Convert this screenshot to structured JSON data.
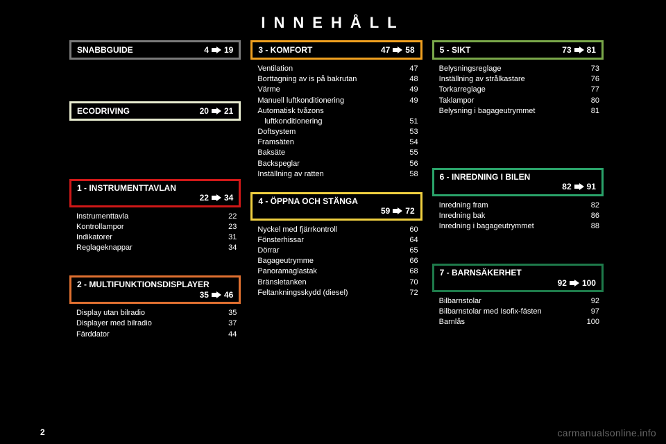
{
  "title": "INNEHÅLL",
  "page_number": "2",
  "watermark": "carmanualsonline.info",
  "colors": {
    "snabbguide": "#7a7a7a",
    "ecodriving": "#e8ecd0",
    "instrument": "#d01818",
    "multifunk": "#e07030",
    "komfort": "#f0a020",
    "oppna": "#f0d040",
    "sikt": "#7aa84a",
    "inredning": "#2aa36a",
    "barn": "#1e7a4a",
    "arrow": "#ffffff"
  },
  "sections": {
    "snabbguide": {
      "label": "SNABBGUIDE",
      "range_from": "4",
      "range_to": "19",
      "items": []
    },
    "ecodriving": {
      "label": "ECODRIVING",
      "range_from": "20",
      "range_to": "21",
      "items": []
    },
    "instrument": {
      "label": "1 - INSTRUMENTTAVLAN",
      "range_from": "22",
      "range_to": "34",
      "two_line": true,
      "items": [
        {
          "name": "Instrumenttavla",
          "page": "22"
        },
        {
          "name": "Kontrollampor",
          "page": "23"
        },
        {
          "name": "Indikatorer",
          "page": "31"
        },
        {
          "name": "Reglageknappar",
          "page": "34"
        }
      ]
    },
    "multifunk": {
      "label": "2 - MULTIFUNKTIONSDISPLAYER",
      "range_from": "35",
      "range_to": "46",
      "two_line": true,
      "items": [
        {
          "name": "Display utan bilradio",
          "page": "35"
        },
        {
          "name": "Displayer med bilradio",
          "page": "37"
        },
        {
          "name": "Färddator",
          "page": "44"
        }
      ]
    },
    "komfort": {
      "label": "3 - KOMFORT",
      "range_from": "47",
      "range_to": "58",
      "items": [
        {
          "name": "Ventilation",
          "page": "47"
        },
        {
          "name": "Borttagning av is på bakrutan",
          "page": "48"
        },
        {
          "name": "Värme",
          "page": "49"
        },
        {
          "name": "Manuell luftkonditionering",
          "page": "49"
        },
        {
          "name": "Automatisk tvåzons",
          "page": ""
        },
        {
          "name": "luftkonditionering",
          "page": "51",
          "sub": true
        },
        {
          "name": "Doftsystem",
          "page": "53"
        },
        {
          "name": "Framsäten",
          "page": "54"
        },
        {
          "name": "Baksäte",
          "page": "55"
        },
        {
          "name": "Backspeglar",
          "page": "56"
        },
        {
          "name": "Inställning av ratten",
          "page": "58"
        }
      ]
    },
    "oppna": {
      "label": "4 - ÖPPNA OCH STÄNGA",
      "range_from": "59",
      "range_to": "72",
      "two_line": true,
      "items": [
        {
          "name": "Nyckel med fjärrkontroll",
          "page": "60"
        },
        {
          "name": "Fönsterhissar",
          "page": "64"
        },
        {
          "name": "Dörrar",
          "page": "65"
        },
        {
          "name": "Bagageutrymme",
          "page": "66"
        },
        {
          "name": "Panoramaglastak",
          "page": "68"
        },
        {
          "name": "Bränsletanken",
          "page": "70"
        },
        {
          "name": "Feltankningsskydd (diesel)",
          "page": "72"
        }
      ]
    },
    "sikt": {
      "label": "5 - SIKT",
      "range_from": "73",
      "range_to": "81",
      "items": [
        {
          "name": "Belysningsreglage",
          "page": "73"
        },
        {
          "name": "Inställning av strålkastare",
          "page": "76"
        },
        {
          "name": "Torkarreglage",
          "page": "77"
        },
        {
          "name": "Taklampor",
          "page": "80"
        },
        {
          "name": "Belysning i bagageutrymmet",
          "page": "81"
        }
      ]
    },
    "inredning": {
      "label": "6 - INREDNING I BILEN",
      "range_from": "82",
      "range_to": "91",
      "two_line": true,
      "items": [
        {
          "name": "Inredning fram",
          "page": "82"
        },
        {
          "name": "Inredning bak",
          "page": "86"
        },
        {
          "name": "Inredning i bagageutrymmet",
          "page": "88"
        }
      ]
    },
    "barn": {
      "label": "7 - BARNSÄKERHET",
      "range_from": "92",
      "range_to": "100",
      "two_line": true,
      "items": [
        {
          "name": "Bilbarnstolar",
          "page": "92"
        },
        {
          "name": "Bilbarnstolar med Isofix-fästen",
          "page": "97"
        },
        {
          "name": "Barnlås",
          "page": "100"
        }
      ]
    }
  },
  "layout": {
    "col1": [
      "snabbguide",
      "ecodriving",
      "instrument",
      "multifunk"
    ],
    "col2": [
      "komfort",
      "oppna"
    ],
    "col3": [
      "sikt",
      "inredning",
      "barn"
    ]
  },
  "spacers": {
    "after_snabbguide": 50,
    "after_ecodriving": 74,
    "after_instrument": 18,
    "after_komfort_header_items_before_next": 0,
    "after_sikt": 60,
    "after_inredning": 32
  }
}
